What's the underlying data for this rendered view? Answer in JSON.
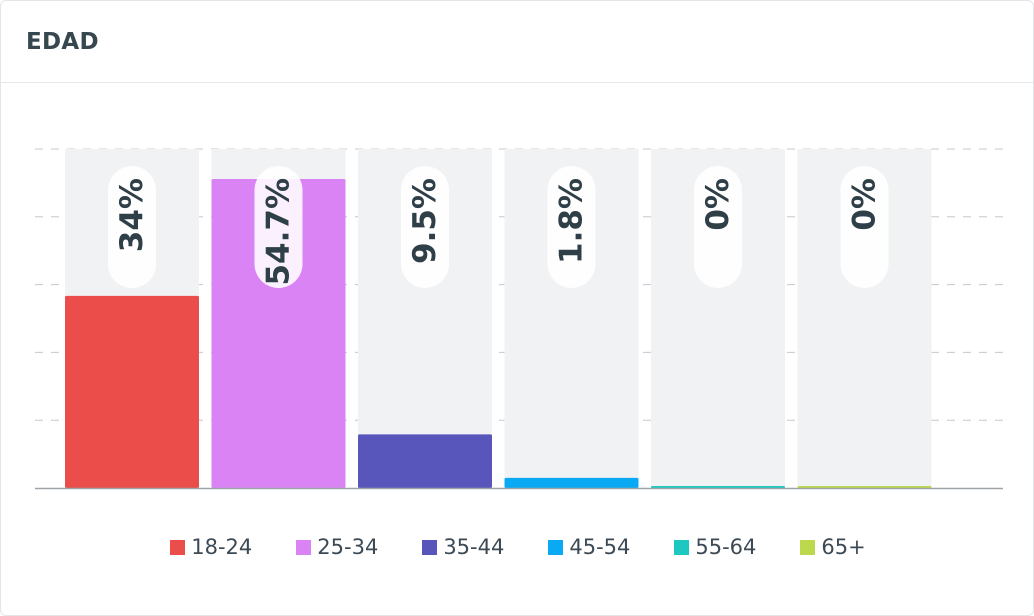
{
  "header": {
    "title": "EDAD"
  },
  "chart_data": {
    "type": "bar",
    "title": "EDAD",
    "xlabel": "",
    "ylabel": "",
    "ylim": [
      0,
      60
    ],
    "grid": true,
    "legend_position": "bottom",
    "categories": [
      "18-24",
      "25-34",
      "35-44",
      "45-54",
      "55-64",
      "65+"
    ],
    "values": [
      34,
      54.7,
      9.5,
      1.8,
      0,
      0
    ],
    "labels": [
      "34%",
      "54.7%",
      "9.5%",
      "1.8%",
      "0%",
      "0%"
    ],
    "colors": [
      "#ea4d4a",
      "#d983f5",
      "#5856bb",
      "#0aa9f4",
      "#1dc8c0",
      "#bcd94e"
    ],
    "background_color": "#f1f2f4",
    "grid_color": "#c6c9cc",
    "axis_color": "#9ea3a8"
  }
}
